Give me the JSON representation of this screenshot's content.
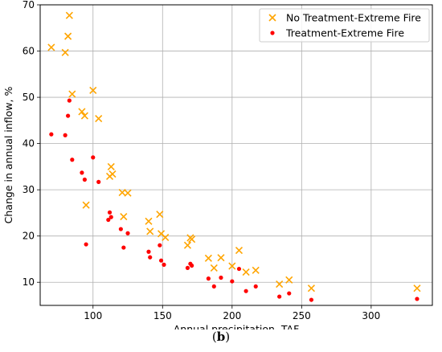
{
  "caption": {
    "open": "(",
    "letter": "b",
    "close": ")"
  },
  "chart_data": {
    "type": "scatter",
    "xlabel": "Annual precipitation, TAF",
    "ylabel": "Change in annual inflow, %",
    "xlim": [
      62,
      344
    ],
    "ylim": [
      5,
      70
    ],
    "xticks": [
      100,
      150,
      200,
      250,
      300
    ],
    "yticks": [
      10,
      20,
      30,
      40,
      50,
      60,
      70
    ],
    "grid": true,
    "legend_position": "top-right",
    "series": [
      {
        "name": "No Treatment-Extreme Fire",
        "marker": "x",
        "color": "#FFA500",
        "points": [
          [
            70,
            60.8
          ],
          [
            80,
            59.7
          ],
          [
            82,
            63.2
          ],
          [
            83,
            67.7
          ],
          [
            85,
            50.7
          ],
          [
            92,
            46.9
          ],
          [
            94,
            46.0
          ],
          [
            95,
            26.7
          ],
          [
            100,
            51.5
          ],
          [
            104,
            45.4
          ],
          [
            112,
            32.9
          ],
          [
            113,
            35.0
          ],
          [
            114,
            33.4
          ],
          [
            121,
            29.4
          ],
          [
            122,
            24.2
          ],
          [
            125,
            29.3
          ],
          [
            140,
            23.2
          ],
          [
            141,
            21.0
          ],
          [
            148,
            24.7
          ],
          [
            149,
            20.5
          ],
          [
            152,
            19.7
          ],
          [
            168,
            18.0
          ],
          [
            170,
            19.6
          ],
          [
            171,
            19.3
          ],
          [
            183,
            15.2
          ],
          [
            187,
            13.1
          ],
          [
            192,
            15.3
          ],
          [
            200,
            13.5
          ],
          [
            205,
            16.9
          ],
          [
            210,
            12.2
          ],
          [
            217,
            12.6
          ],
          [
            234,
            9.6
          ],
          [
            241,
            10.5
          ],
          [
            257,
            8.7
          ],
          [
            333,
            8.7
          ]
        ]
      },
      {
        "name": "Treatment-Extreme Fire",
        "marker": "o",
        "color": "#FF0000",
        "points": [
          [
            70,
            42.0
          ],
          [
            80,
            41.8
          ],
          [
            82,
            46.0
          ],
          [
            83,
            49.3
          ],
          [
            85,
            36.5
          ],
          [
            92,
            33.7
          ],
          [
            94,
            32.2
          ],
          [
            95,
            18.2
          ],
          [
            100,
            37.0
          ],
          [
            104,
            31.7
          ],
          [
            111,
            23.5
          ],
          [
            112,
            25.1
          ],
          [
            113,
            24.1
          ],
          [
            120,
            21.5
          ],
          [
            122,
            17.5
          ],
          [
            125,
            20.6
          ],
          [
            140,
            16.6
          ],
          [
            141,
            15.4
          ],
          [
            148,
            18.0
          ],
          [
            149,
            14.7
          ],
          [
            151,
            13.8
          ],
          [
            168,
            13.1
          ],
          [
            170,
            14.0
          ],
          [
            171,
            13.6
          ],
          [
            183,
            10.8
          ],
          [
            187,
            9.1
          ],
          [
            192,
            11.0
          ],
          [
            200,
            10.2
          ],
          [
            205,
            12.9
          ],
          [
            210,
            8.1
          ],
          [
            217,
            9.1
          ],
          [
            234,
            6.9
          ],
          [
            241,
            7.6
          ],
          [
            257,
            6.2
          ],
          [
            333,
            6.4
          ]
        ]
      }
    ]
  }
}
